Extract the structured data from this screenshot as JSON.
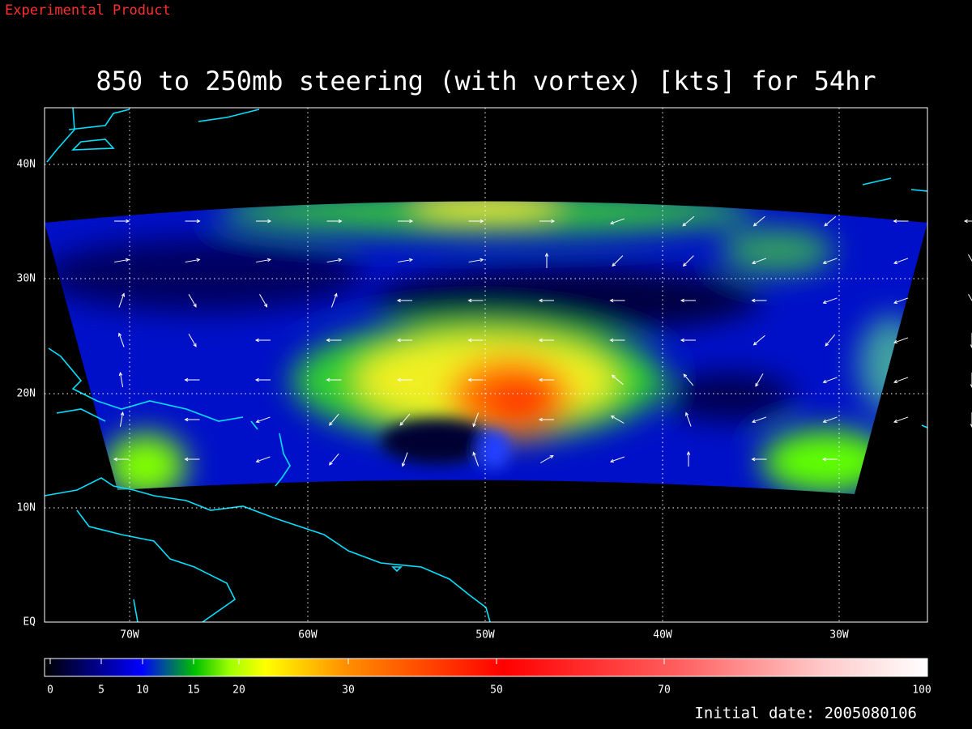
{
  "header": {
    "label": "Experimental Product",
    "title": "850 to 250mb steering (with vortex) [kts] for 54hr"
  },
  "map": {
    "lat_labels": [
      "40N",
      "30N",
      "20N",
      "10N",
      "EQ"
    ],
    "lon_labels": [
      "70W",
      "60W",
      "50W",
      "40W",
      "30W"
    ]
  },
  "colorbar": {
    "ticks": [
      0,
      5,
      10,
      15,
      20,
      30,
      50,
      70,
      100
    ]
  },
  "footer": {
    "initial_date": "Initial date: 2005080106"
  }
}
